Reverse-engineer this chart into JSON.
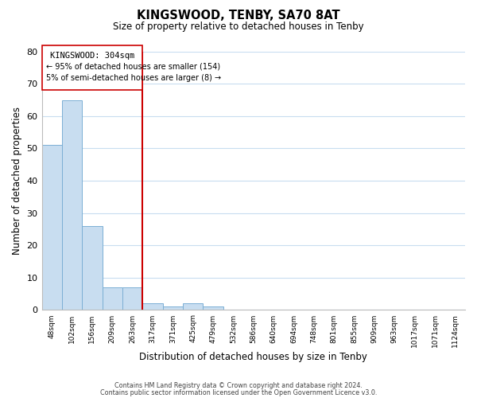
{
  "title": "KINGSWOOD, TENBY, SA70 8AT",
  "subtitle": "Size of property relative to detached houses in Tenby",
  "xlabel": "Distribution of detached houses by size in Tenby",
  "ylabel": "Number of detached properties",
  "bar_labels": [
    "48sqm",
    "102sqm",
    "156sqm",
    "209sqm",
    "263sqm",
    "317sqm",
    "371sqm",
    "425sqm",
    "479sqm",
    "532sqm",
    "586sqm",
    "640sqm",
    "694sqm",
    "748sqm",
    "801sqm",
    "855sqm",
    "909sqm",
    "963sqm",
    "1017sqm",
    "1071sqm",
    "1124sqm"
  ],
  "bar_heights": [
    51,
    65,
    26,
    7,
    7,
    2,
    1,
    2,
    1,
    0,
    0,
    0,
    0,
    0,
    0,
    0,
    0,
    0,
    0,
    0,
    0
  ],
  "bar_color": "#c8ddf0",
  "bar_edge_color": "#7bafd4",
  "ylim": [
    0,
    80
  ],
  "yticks": [
    0,
    10,
    20,
    30,
    40,
    50,
    60,
    70,
    80
  ],
  "vline_color": "#cc0000",
  "annotation_title": "KINGSWOOD: 304sqm",
  "annotation_line1": "← 95% of detached houses are smaller (154)",
  "annotation_line2": "5% of semi-detached houses are larger (8) →",
  "footer1": "Contains HM Land Registry data © Crown copyright and database right 2024.",
  "footer2": "Contains public sector information licensed under the Open Government Licence v3.0.",
  "bg_color": "#ffffff",
  "grid_color": "#c8ddf0"
}
